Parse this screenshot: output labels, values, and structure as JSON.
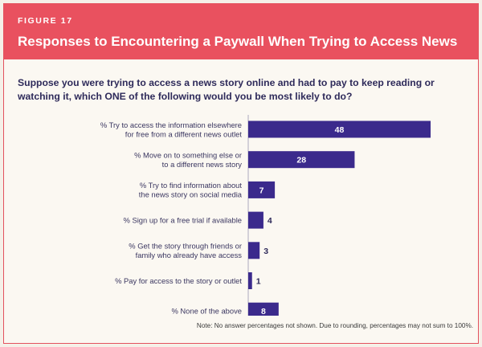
{
  "header": {
    "figure_label": "FIGURE 17",
    "title": "Responses to Encountering a Paywall When Trying to Access News"
  },
  "question": "Suppose you were trying to access a news story online and had to pay to keep reading or watching it, which ONE of the following would you be most likely to do?",
  "note": "Note: No answer percentages not shown. Due to rounding, percentages may not sum to 100%.",
  "colors": {
    "header_bg": "#e9515f",
    "bar": "#3b2a8c"
  },
  "chart_data": {
    "type": "bar",
    "orientation": "horizontal",
    "categories": [
      [
        "% Try to access the information elsewhere",
        "for free from a different news outlet"
      ],
      [
        "% Move on to something else or",
        "to a different news story"
      ],
      [
        "% Try to find information about",
        "the news story on social media"
      ],
      [
        "% Sign up for a free trial if available"
      ],
      [
        "% Get the story through friends or",
        "family who already have access"
      ],
      [
        "% Pay for access to the story or outlet"
      ],
      [
        "% None of the above"
      ]
    ],
    "values": [
      48,
      28,
      7,
      4,
      3,
      1,
      8
    ],
    "xlim": [
      0,
      100
    ],
    "unit": "%"
  }
}
